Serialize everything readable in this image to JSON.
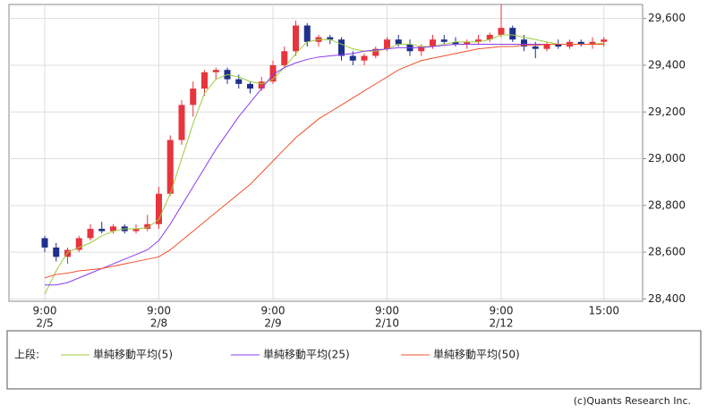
{
  "chart_data": {
    "type": "candlestick",
    "categories": [
      "9:00",
      null,
      null,
      null,
      null,
      null,
      null,
      null,
      null,
      null,
      "9:00",
      null,
      null,
      null,
      null,
      null,
      null,
      null,
      null,
      null,
      "9:00",
      null,
      null,
      null,
      null,
      null,
      null,
      null,
      null,
      null,
      "9:00",
      null,
      null,
      null,
      null,
      null,
      null,
      null,
      null,
      null,
      "9:00",
      null,
      null,
      null,
      null,
      null,
      null,
      null,
      null,
      "15:00"
    ],
    "dates": [
      "2/5",
      null,
      null,
      null,
      null,
      null,
      null,
      null,
      null,
      null,
      "2/8",
      null,
      null,
      null,
      null,
      null,
      null,
      null,
      null,
      null,
      "2/9",
      null,
      null,
      null,
      null,
      null,
      null,
      null,
      null,
      null,
      "2/10",
      null,
      null,
      null,
      null,
      null,
      null,
      null,
      null,
      null,
      "2/12",
      null,
      null,
      null,
      null,
      null,
      null,
      null,
      null,
      null
    ],
    "open": [
      28660,
      28620,
      28580,
      28610,
      28660,
      28700,
      28690,
      28710,
      28690,
      28700,
      28720,
      28850,
      29080,
      29230,
      29300,
      29370,
      29380,
      29340,
      29320,
      29300,
      29330,
      29400,
      29460,
      29570,
      29500,
      29520,
      29510,
      29440,
      29420,
      29440,
      29470,
      29510,
      29490,
      29460,
      29480,
      29510,
      29500,
      29490,
      29500,
      29510,
      29530,
      29560,
      29510,
      29480,
      29470,
      29490,
      29480,
      29500,
      29490,
      29500
    ],
    "high": [
      28670,
      28640,
      28620,
      28670,
      28720,
      28730,
      28720,
      28720,
      28720,
      28760,
      28880,
      29100,
      29250,
      29330,
      29380,
      29390,
      29390,
      29360,
      29330,
      29350,
      29420,
      29480,
      29590,
      29580,
      29530,
      29530,
      29520,
      29460,
      29450,
      29480,
      29520,
      29530,
      29510,
      29490,
      29530,
      29530,
      29520,
      29510,
      29530,
      29540,
      29660,
      29570,
      29530,
      29500,
      29500,
      29510,
      29510,
      29510,
      29520,
      29520
    ],
    "low": [
      28600,
      28560,
      28550,
      28600,
      28650,
      28680,
      28680,
      28680,
      28680,
      28690,
      28700,
      28840,
      29060,
      29180,
      29270,
      29340,
      29320,
      29300,
      29280,
      29290,
      29320,
      29390,
      29440,
      29480,
      29480,
      29490,
      29420,
      29400,
      29400,
      29430,
      29460,
      29480,
      29440,
      29440,
      29470,
      29490,
      29480,
      29470,
      29490,
      29500,
      29520,
      29500,
      29460,
      29430,
      29460,
      29470,
      29470,
      29480,
      29470,
      29480
    ],
    "close": [
      28620,
      28580,
      28610,
      28660,
      28700,
      28690,
      28710,
      28690,
      28700,
      28720,
      28850,
      29080,
      29230,
      29300,
      29370,
      29380,
      29340,
      29320,
      29300,
      29330,
      29400,
      29460,
      29570,
      29500,
      29520,
      29510,
      29440,
      29420,
      29440,
      29470,
      29510,
      29490,
      29460,
      29480,
      29510,
      29500,
      29490,
      29500,
      29510,
      29530,
      29560,
      29510,
      29480,
      29470,
      29490,
      29480,
      29500,
      29490,
      29500,
      29510
    ],
    "up_color": "#e8343d",
    "down_color": "#1f2f8c",
    "legend_title": "上段:",
    "series": [
      {
        "name": "単純移動平均(5)",
        "color": "#9ccc3c",
        "values": [
          28420,
          28520,
          28600,
          28620,
          28640,
          28670,
          28690,
          28700,
          28700,
          28705,
          28740,
          28850,
          29000,
          29150,
          29280,
          29340,
          29360,
          29350,
          29330,
          29320,
          29340,
          29390,
          29450,
          29500,
          29510,
          29510,
          29490,
          29470,
          29460,
          29460,
          29470,
          29490,
          29490,
          29480,
          29480,
          29490,
          29500,
          29500,
          29500,
          29510,
          29530,
          29530,
          29520,
          29510,
          29500,
          29490,
          29490,
          29490,
          29490,
          29495
        ]
      },
      {
        "name": "単純移動平均(25)",
        "color": "#8a3cf0",
        "values": [
          28460,
          28460,
          28470,
          28490,
          28510,
          28530,
          28550,
          28570,
          28590,
          28610,
          28650,
          28720,
          28800,
          28880,
          28960,
          29040,
          29110,
          29180,
          29240,
          29300,
          29360,
          29390,
          29410,
          29425,
          29435,
          29440,
          29445,
          29450,
          29460,
          29465,
          29470,
          29475,
          29475,
          29475,
          29480,
          29485,
          29490,
          29490,
          29490,
          29490,
          29490,
          29490,
          29490,
          29490,
          29490,
          29490,
          29490,
          29490,
          29490,
          29490
        ]
      },
      {
        "name": "単純移動平均(50)",
        "color": "#f0502a",
        "values": [
          28490,
          28505,
          28510,
          28520,
          28525,
          28530,
          28540,
          28550,
          28560,
          28570,
          28580,
          28610,
          28650,
          28690,
          28730,
          28770,
          28810,
          28850,
          28890,
          28940,
          28990,
          29040,
          29090,
          29130,
          29170,
          29200,
          29230,
          29260,
          29290,
          29320,
          29350,
          29380,
          29400,
          29420,
          29430,
          29440,
          29450,
          29460,
          29470,
          29475,
          29480,
          29480,
          29485,
          29485,
          29490,
          29490,
          29490,
          29490,
          29490,
          29490
        ]
      }
    ],
    "ylim": [
      28390,
      29660
    ],
    "yticks": [
      {
        "value": 28400,
        "label": "28,400"
      },
      {
        "value": 28600,
        "label": "28,600"
      },
      {
        "value": 28800,
        "label": "28,800"
      },
      {
        "value": 29000,
        "label": "29,000"
      },
      {
        "value": 29200,
        "label": "29,200"
      },
      {
        "value": 29400,
        "label": "29,400"
      },
      {
        "value": 29600,
        "label": "29,600"
      }
    ],
    "grid": true,
    "credit": "(c)Quants Research Inc."
  }
}
